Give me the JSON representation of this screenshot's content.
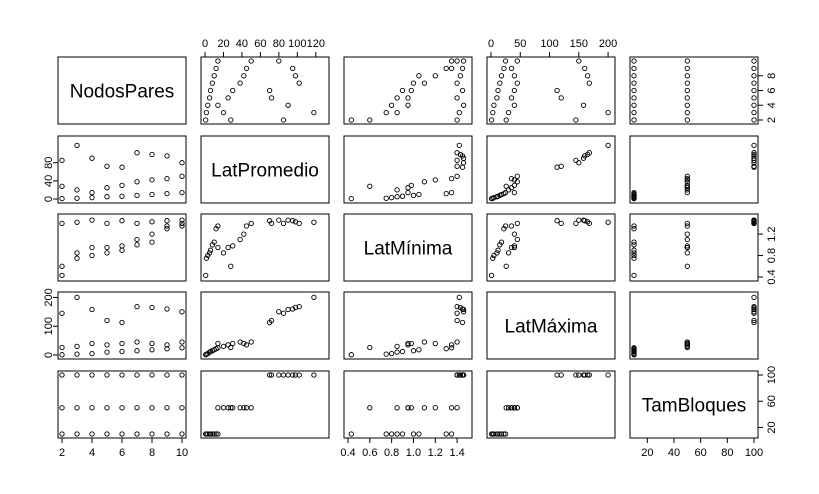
{
  "chart_data": {
    "type": "scatter",
    "matrix_type": "pairs",
    "variables": [
      {
        "name": "NodosPares",
        "range": [
          2,
          10
        ],
        "ticks": [
          "2",
          "4",
          "6",
          "8",
          "10"
        ]
      },
      {
        "name": "LatPromedio",
        "range": [
          0,
          130
        ],
        "ticks": [
          "0",
          "20",
          "40",
          "60",
          "80",
          "100",
          "120"
        ]
      },
      {
        "name": "LatMínima",
        "range": [
          0.4,
          1.5
        ],
        "ticks": [
          "0.4",
          "0.6",
          "0.8",
          "1.0",
          "1.2",
          "1.4"
        ]
      },
      {
        "name": "LatMáxima",
        "range": [
          0,
          205
        ],
        "ticks": [
          "0",
          "50",
          "100",
          "150",
          "200"
        ]
      },
      {
        "name": "TamBloques",
        "range": [
          10,
          100
        ],
        "ticks": [
          "20",
          "40",
          "60",
          "80",
          "100"
        ]
      }
    ],
    "left_axis_ticks": {
      "NodosPares": [
        "2",
        "4",
        "6",
        "8"
      ],
      "LatPromedio": [
        "0",
        "40",
        "80"
      ],
      "LatMínima": [
        "0.4",
        "0.8",
        "1.2"
      ],
      "LatMáxima": [
        "0",
        "100",
        "200"
      ],
      "TamBloques": [
        "20",
        "60",
        "100"
      ]
    },
    "axis_layout": {
      "top": [
        null,
        "LatPromedio",
        null,
        "LatMáxima",
        null
      ],
      "right": [
        "NodosPares",
        null,
        "LatMínima",
        null,
        "TamBloques"
      ],
      "bottom": [
        "NodosPares",
        null,
        "LatMínima",
        null,
        "TamBloques"
      ],
      "left": [
        null,
        "LatPromedio",
        null,
        "LatMáxima",
        null
      ]
    },
    "observations": [
      [
        2,
        0.8,
        0.43,
        1,
        10
      ],
      [
        2,
        28,
        0.6,
        26,
        50
      ],
      [
        2,
        85,
        1.4,
        145,
        100
      ],
      [
        3,
        1.5,
        0.75,
        3,
        10
      ],
      [
        3,
        20,
        0.85,
        30,
        50
      ],
      [
        3,
        118,
        1.42,
        200,
        100
      ],
      [
        4,
        3,
        0.8,
        5,
        10
      ],
      [
        4,
        14,
        0.95,
        40,
        50
      ],
      [
        4,
        90,
        1.46,
        158,
        100
      ],
      [
        5,
        5,
        0.85,
        10,
        10
      ],
      [
        5,
        25,
        0.95,
        35,
        50
      ],
      [
        5,
        72,
        1.4,
        120,
        100
      ],
      [
        6,
        6,
        0.9,
        12,
        10
      ],
      [
        6,
        30,
        0.98,
        40,
        50
      ],
      [
        6,
        70,
        1.45,
        113,
        100
      ],
      [
        7,
        8,
        1.0,
        15,
        10
      ],
      [
        7,
        38,
        1.1,
        45,
        50
      ],
      [
        7,
        102,
        1.4,
        168,
        100
      ],
      [
        8,
        10,
        1.05,
        18,
        10
      ],
      [
        8,
        42,
        1.2,
        40,
        50
      ],
      [
        8,
        98,
        1.43,
        165,
        100
      ],
      [
        9,
        12,
        1.3,
        22,
        10
      ],
      [
        9,
        45,
        1.35,
        35,
        50
      ],
      [
        9,
        95,
        1.45,
        160,
        100
      ],
      [
        10,
        14,
        1.35,
        25,
        10
      ],
      [
        10,
        50,
        1.4,
        45,
        50
      ],
      [
        10,
        80,
        1.46,
        150,
        100
      ]
    ]
  }
}
